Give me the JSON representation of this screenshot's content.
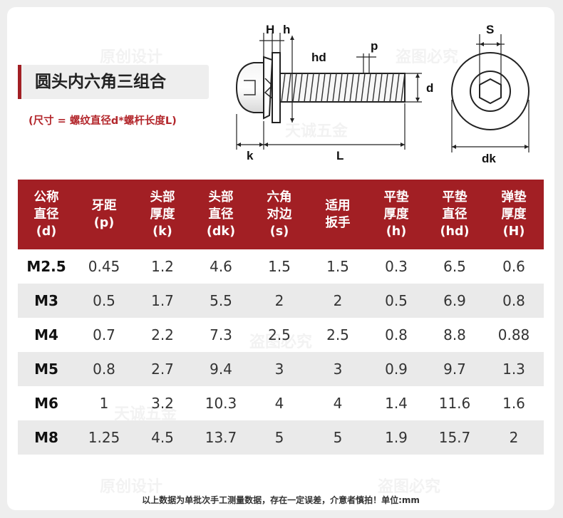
{
  "title": "圆头内六角三组合",
  "subtitle": "(尺寸 = 螺纹直径d*螺杆长度L)",
  "diagram_labels": {
    "H": "H",
    "h": "h",
    "hd": "hd",
    "p": "p",
    "d": "d",
    "k": "k",
    "L": "L",
    "S": "S",
    "dk": "dk"
  },
  "table": {
    "headers": [
      [
        "公称",
        "直径",
        "(d)"
      ],
      [
        "牙距",
        "(p)"
      ],
      [
        "头部",
        "厚度",
        "(k)"
      ],
      [
        "头部",
        "直径",
        "(dk)"
      ],
      [
        "六角",
        "对边",
        "(s)"
      ],
      [
        "适用",
        "扳手"
      ],
      [
        "平垫",
        "厚度",
        "(h)"
      ],
      [
        "平垫",
        "直径",
        "(hd)"
      ],
      [
        "弹垫",
        "厚度",
        "(H)"
      ]
    ],
    "rows": [
      [
        "M2.5",
        "0.45",
        "1.2",
        "4.6",
        "1.5",
        "1.5",
        "0.3",
        "6.5",
        "0.6"
      ],
      [
        "M3",
        "0.5",
        "1.7",
        "5.5",
        "2",
        "2",
        "0.5",
        "6.9",
        "0.8"
      ],
      [
        "M4",
        "0.7",
        "2.2",
        "7.3",
        "2.5",
        "2.5",
        "0.8",
        "8.8",
        "0.88"
      ],
      [
        "M5",
        "0.8",
        "2.7",
        "9.4",
        "3",
        "3",
        "0.9",
        "9.7",
        "1.3"
      ],
      [
        "M6",
        "1",
        "3.2",
        "10.3",
        "4",
        "4",
        "1.4",
        "11.6",
        "1.6"
      ],
      [
        "M8",
        "1.25",
        "4.5",
        "13.7",
        "5",
        "5",
        "1.9",
        "15.7",
        "2"
      ]
    ]
  },
  "footnote": "以上数据为单批次手工测量数据，存在一定误差，介意者慎拍！单位:mm",
  "watermarks": [
    "原创设计",
    "盗图必究",
    "天诚五金"
  ],
  "colors": {
    "header_bg": "#a21f24",
    "accent_red": "#b3272c",
    "alt_row": "#eaeaea"
  }
}
